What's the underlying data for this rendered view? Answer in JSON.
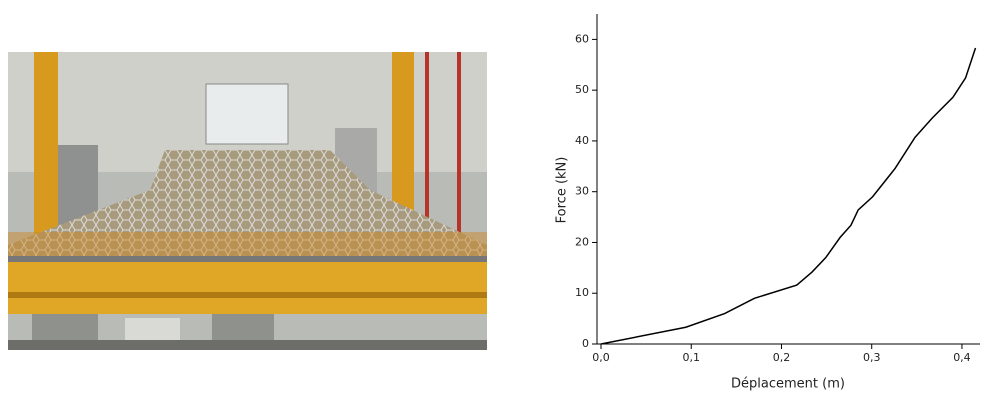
{
  "chart_data": {
    "type": "line",
    "x": [
      0,
      0.094,
      0.137,
      0.17,
      0.217,
      0.234,
      0.249,
      0.265,
      0.277,
      0.285,
      0.301,
      0.326,
      0.348,
      0.367,
      0.39,
      0.404,
      0.415
    ],
    "values": [
      0,
      3.3,
      6,
      9,
      11.6,
      14.2,
      17,
      21,
      23.4,
      26.4,
      29,
      34.6,
      40.7,
      44.5,
      48.6,
      52.4,
      58.3
    ],
    "color": "#000000",
    "xlabel": "Déplacement (m)",
    "ylabel": "Force (kN)",
    "xlim": [
      0,
      0.42
    ],
    "ylim": [
      0,
      65
    ],
    "xticks": [
      {
        "value": 0,
        "label": "0,0"
      },
      {
        "value": 0.1,
        "label": "0,1"
      },
      {
        "value": 0.2,
        "label": "0,2"
      },
      {
        "value": 0.3,
        "label": "0,3"
      },
      {
        "value": 0.4,
        "label": "0,4"
      }
    ],
    "yticks": [
      0,
      10,
      20,
      30,
      40,
      50,
      60
    ]
  }
}
